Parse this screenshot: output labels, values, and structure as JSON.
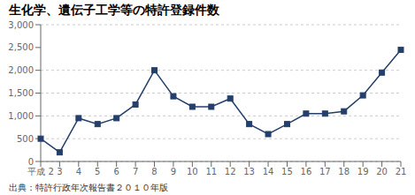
{
  "chart_data": {
    "type": "line",
    "title": "生化学、遺伝子工学等の特許登録件数",
    "annotations": [
      "出典：特許行政年次報告書２０１０年版"
    ],
    "categories": [
      "平成 2",
      "3",
      "4",
      "5",
      "6",
      "7",
      "8",
      "9",
      "10",
      "11",
      "12",
      "13",
      "14",
      "15",
      "16",
      "17",
      "18",
      "19",
      "20",
      "21"
    ],
    "values": [
      500,
      200,
      950,
      820,
      950,
      1250,
      2000,
      1430,
      1200,
      1200,
      1380,
      820,
      600,
      820,
      1050,
      1050,
      1100,
      1450,
      1950,
      2450
    ],
    "color": "#243f6b",
    "marker": "square",
    "ylim": [
      0,
      3000
    ],
    "yticks": [
      0,
      500,
      {
        "value": 1000,
        "label": "1,000"
      },
      {
        "value": 1500,
        "label": "1,500"
      },
      {
        "value": 2000,
        "label": "2,000"
      },
      {
        "value": 2500,
        "label": "2,500"
      },
      {
        "value": 3000,
        "label": "3,000"
      }
    ],
    "grid": true
  }
}
